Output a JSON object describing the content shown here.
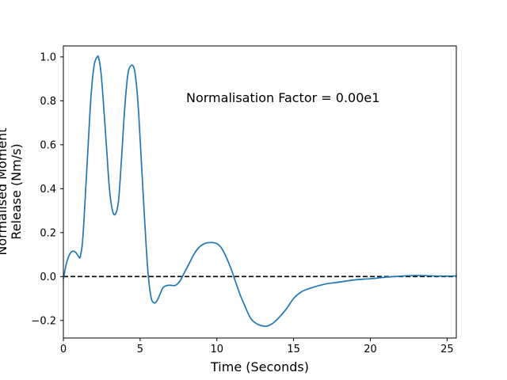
{
  "chart_data": {
    "type": "line",
    "title": "",
    "xlabel": "Time (Seconds)",
    "ylabel_lines": [
      "Normalised Moment",
      "Release (Nm/s)"
    ],
    "xlim": [
      0,
      25.6
    ],
    "ylim": [
      -0.28,
      1.05
    ],
    "xticks": [
      0,
      5,
      10,
      15,
      20,
      25
    ],
    "yticks": [
      -0.2,
      0.0,
      0.2,
      0.4,
      0.6,
      0.8,
      1.0
    ],
    "ytick_labels": [
      "−0.2",
      "0.0",
      "0.2",
      "0.4",
      "0.6",
      "0.8",
      "1.0"
    ],
    "grid": false,
    "annotation": {
      "text": "Normalisation Factor = 0.00e1",
      "x": 8.0,
      "y": 0.81
    },
    "reference_line": {
      "y": 0.0,
      "style": "dashed",
      "color": "#000000"
    },
    "series": [
      {
        "color": "#1f77b4",
        "x": [
          0.0,
          0.2,
          0.4,
          0.6,
          0.8,
          1.0,
          1.1,
          1.25,
          1.4,
          1.6,
          1.8,
          2.0,
          2.2,
          2.3,
          2.45,
          2.6,
          2.8,
          3.0,
          3.2,
          3.4,
          3.6,
          3.8,
          4.0,
          4.2,
          4.4,
          4.6,
          4.75,
          4.9,
          5.1,
          5.3,
          5.5,
          5.7,
          5.9,
          6.1,
          6.3,
          6.5,
          6.8,
          7.0,
          7.3,
          7.6,
          7.9,
          8.2,
          8.5,
          8.8,
          9.2,
          9.6,
          10.0,
          10.3,
          10.6,
          10.9,
          11.2,
          11.5,
          11.8,
          12.2,
          12.6,
          13.0,
          13.3,
          13.6,
          14.0,
          14.5,
          15.0,
          15.5,
          16.0,
          17.0,
          18.0,
          19.0,
          20.0,
          21.0,
          22.0,
          23.0,
          24.0,
          24.8,
          25.6
        ],
        "y": [
          -0.01,
          0.06,
          0.1,
          0.115,
          0.11,
          0.09,
          0.09,
          0.16,
          0.33,
          0.58,
          0.82,
          0.96,
          1.0,
          0.995,
          0.93,
          0.8,
          0.6,
          0.4,
          0.3,
          0.285,
          0.35,
          0.55,
          0.77,
          0.92,
          0.96,
          0.95,
          0.88,
          0.75,
          0.5,
          0.25,
          0.03,
          -0.09,
          -0.12,
          -0.11,
          -0.08,
          -0.05,
          -0.04,
          -0.04,
          -0.04,
          -0.02,
          0.02,
          0.06,
          0.1,
          0.13,
          0.15,
          0.155,
          0.15,
          0.13,
          0.09,
          0.04,
          -0.02,
          -0.08,
          -0.13,
          -0.19,
          -0.215,
          -0.225,
          -0.225,
          -0.215,
          -0.19,
          -0.15,
          -0.1,
          -0.07,
          -0.055,
          -0.035,
          -0.025,
          -0.015,
          -0.01,
          -0.003,
          0.002,
          0.005,
          0.003,
          0.002,
          0.003
        ]
      }
    ]
  }
}
